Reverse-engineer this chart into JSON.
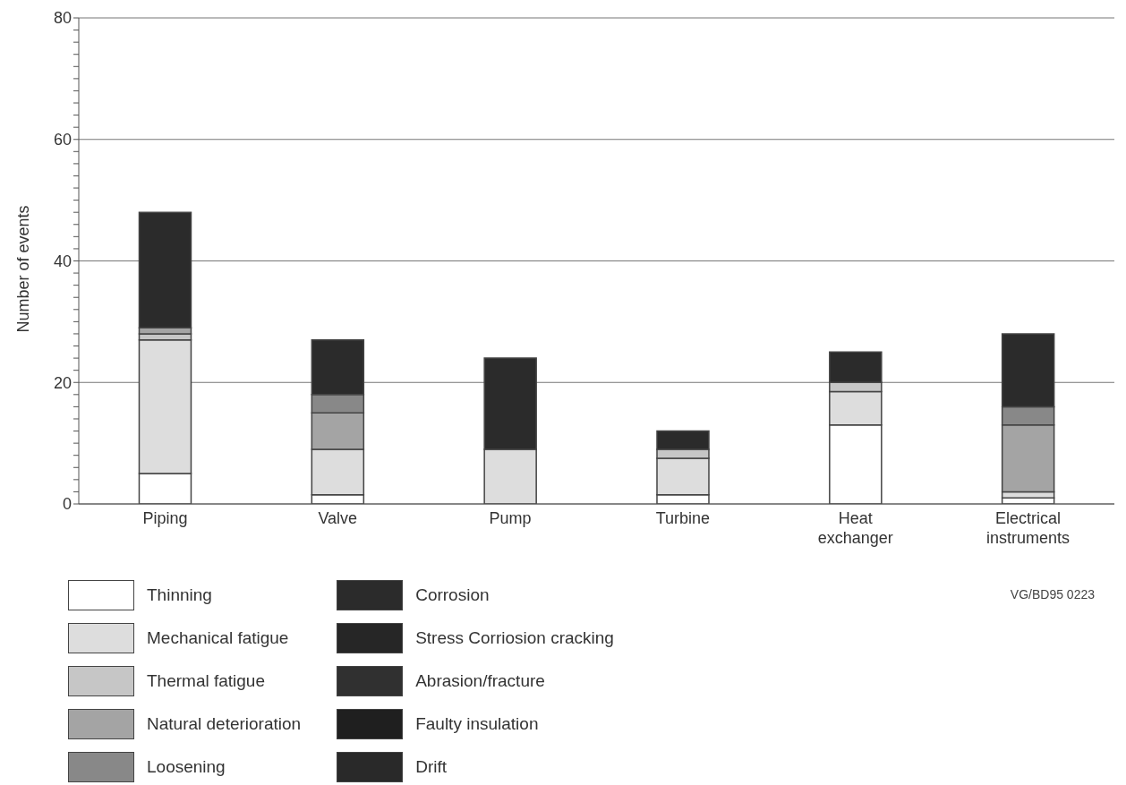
{
  "chart_data": {
    "type": "bar",
    "stacked": true,
    "ylabel": "Number of events",
    "categories": [
      "Piping",
      "Valve",
      "Pump",
      "Turbine",
      "Heat exchanger",
      "Electrical instruments"
    ],
    "series": [
      {
        "name": "Thinning",
        "color": "#ffffff",
        "values": [
          5,
          1.5,
          0,
          1.5,
          13,
          1
        ]
      },
      {
        "name": "Mechanical fatigue",
        "color": "#dddddd",
        "values": [
          22,
          7.5,
          9,
          6,
          5.5,
          1
        ]
      },
      {
        "name": "Thermal fatigue",
        "color": "#c6c6c6",
        "values": [
          1,
          0,
          0,
          1.5,
          1.5,
          0
        ]
      },
      {
        "name": "Natural deterioration",
        "color": "#a4a4a4",
        "values": [
          1,
          6,
          0,
          0,
          0,
          11
        ]
      },
      {
        "name": "Loosening",
        "color": "#888888",
        "values": [
          0,
          3,
          0,
          0,
          0,
          3
        ]
      },
      {
        "name": "Corrosion",
        "color": "#2b2b2b",
        "values": [
          19,
          9,
          15,
          3,
          5,
          12
        ]
      },
      {
        "name": "Stress Corriosion cracking",
        "color": "#262626",
        "values": [
          0,
          0,
          0,
          0,
          0,
          0
        ]
      },
      {
        "name": "Abrasion/fracture",
        "color": "#303030",
        "values": [
          0,
          0,
          0,
          0,
          0,
          0
        ]
      },
      {
        "name": "Faulty insulation",
        "color": "#1f1f1f",
        "values": [
          0,
          0,
          0,
          0,
          0,
          0
        ]
      },
      {
        "name": "Drift",
        "color": "#292929",
        "values": [
          0,
          0,
          0,
          0,
          0,
          0
        ]
      }
    ],
    "ylim": [
      0,
      80
    ],
    "yticks": [
      0,
      {
        "value": 2,
        "label": null
      },
      {
        "value": 4,
        "label": null
      },
      {
        "value": 6,
        "label": null
      },
      {
        "value": 8,
        "label": null
      },
      {
        "value": 10,
        "label": null
      },
      {
        "value": 12,
        "label": null
      },
      {
        "value": 14,
        "label": null
      },
      {
        "value": 16,
        "label": null
      },
      {
        "value": 18,
        "label": null
      },
      20,
      {
        "value": 22,
        "label": null
      },
      {
        "value": 24,
        "label": null
      },
      {
        "value": 26,
        "label": null
      },
      {
        "value": 28,
        "label": null
      },
      {
        "value": 30,
        "label": null
      },
      {
        "value": 32,
        "label": null
      },
      {
        "value": 34,
        "label": null
      },
      {
        "value": 36,
        "label": null
      },
      {
        "value": 38,
        "label": null
      },
      40,
      {
        "value": 42,
        "label": null
      },
      {
        "value": 44,
        "label": null
      },
      {
        "value": 46,
        "label": null
      },
      {
        "value": 48,
        "label": null
      },
      {
        "value": 50,
        "label": null
      },
      {
        "value": 52,
        "label": null
      },
      {
        "value": 54,
        "label": null
      },
      {
        "value": 56,
        "label": null
      },
      {
        "value": 58,
        "label": null
      },
      60,
      {
        "value": 62,
        "label": null
      },
      {
        "value": 64,
        "label": null
      },
      {
        "value": 66,
        "label": null
      },
      {
        "value": 68,
        "label": null
      },
      {
        "value": 70,
        "label": null
      },
      {
        "value": 72,
        "label": null
      },
      {
        "value": 74,
        "label": null
      },
      {
        "value": 76,
        "label": null
      },
      {
        "value": 78,
        "label": null
      },
      80
    ],
    "grid": "y",
    "legend": "bottom",
    "annotations": [
      "VG/BD95 0223"
    ]
  }
}
